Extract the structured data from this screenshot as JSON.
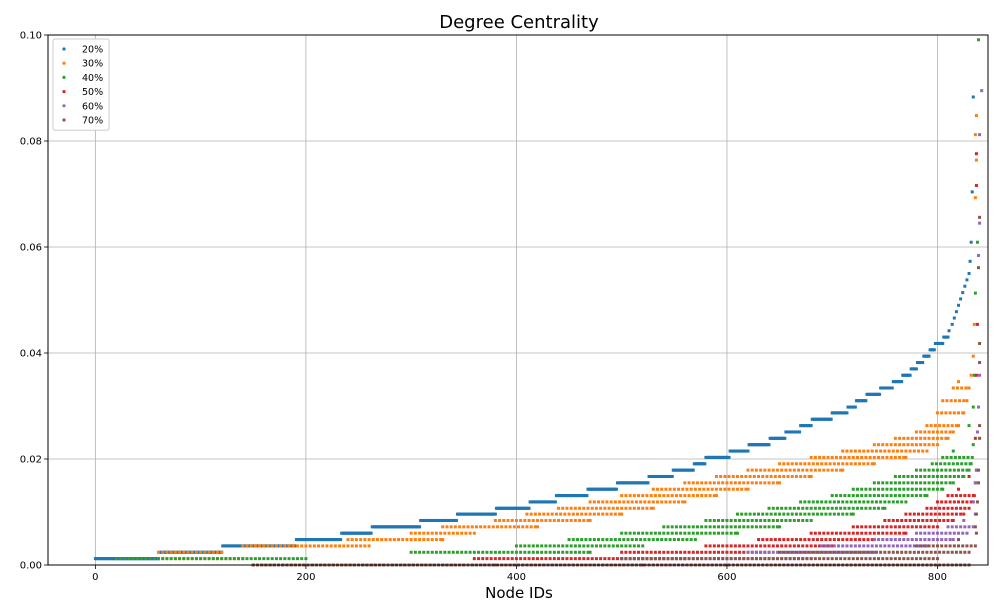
{
  "chart_data": {
    "type": "scatter",
    "title": "Degree Centrality",
    "xlabel": "Node IDs",
    "ylabel": "",
    "xlim": [
      -45,
      848
    ],
    "ylim": [
      0,
      0.1
    ],
    "xticks": [
      0,
      200,
      400,
      600,
      800
    ],
    "xtick_labels": [
      "0",
      "200",
      "400",
      "600",
      "800"
    ],
    "yticks": [
      0,
      0.02,
      0.04,
      0.06,
      0.08,
      0.1
    ],
    "ytick_labels": [
      "0.00",
      "0.02",
      "0.04",
      "0.06",
      "0.08",
      "0.10"
    ],
    "grid": true,
    "legend_position": "top-left",
    "n_nodes": 838,
    "series": [
      {
        "name": "20%",
        "color": "#1f77b4",
        "points": [
          [
            0,
            0.0012
          ],
          [
            60,
            0.0012
          ],
          [
            61,
            0.0024
          ],
          [
            120,
            0.0024
          ],
          [
            121,
            0.0036
          ],
          [
            190,
            0.0036
          ],
          [
            191,
            0.0048
          ],
          [
            233,
            0.0048
          ],
          [
            234,
            0.006
          ],
          [
            262,
            0.006
          ],
          [
            263,
            0.0072
          ],
          [
            308,
            0.0072
          ],
          [
            309,
            0.0084
          ],
          [
            343,
            0.0084
          ],
          [
            344,
            0.0096
          ],
          [
            380,
            0.0096
          ],
          [
            381,
            0.0107
          ],
          [
            412,
            0.0107
          ],
          [
            413,
            0.0119
          ],
          [
            437,
            0.0119
          ],
          [
            438,
            0.0131
          ],
          [
            467,
            0.0131
          ],
          [
            468,
            0.0143
          ],
          [
            495,
            0.0143
          ],
          [
            496,
            0.0155
          ],
          [
            525,
            0.0155
          ],
          [
            526,
            0.0167
          ],
          [
            548,
            0.0167
          ],
          [
            549,
            0.0179
          ],
          [
            568,
            0.0179
          ],
          [
            569,
            0.0191
          ],
          [
            579,
            0.0191
          ],
          [
            580,
            0.0203
          ],
          [
            602,
            0.0203
          ],
          [
            603,
            0.0215
          ],
          [
            620,
            0.0215
          ],
          [
            621,
            0.0227
          ],
          [
            640,
            0.0227
          ],
          [
            641,
            0.0239
          ],
          [
            655,
            0.0239
          ],
          [
            656,
            0.0251
          ],
          [
            669,
            0.0251
          ],
          [
            670,
            0.0263
          ],
          [
            680,
            0.0263
          ],
          [
            681,
            0.0275
          ],
          [
            699,
            0.0275
          ],
          [
            700,
            0.0287
          ],
          [
            714,
            0.0287
          ],
          [
            715,
            0.0298
          ],
          [
            722,
            0.0298
          ],
          [
            723,
            0.031
          ],
          [
            732,
            0.031
          ],
          [
            733,
            0.0322
          ],
          [
            745,
            0.0322
          ],
          [
            746,
            0.0334
          ],
          [
            757,
            0.0334
          ],
          [
            758,
            0.0346
          ],
          [
            766,
            0.0346
          ],
          [
            767,
            0.0358
          ],
          [
            774,
            0.0358
          ],
          [
            775,
            0.037
          ],
          [
            780,
            0.037
          ],
          [
            781,
            0.0382
          ],
          [
            786,
            0.0382
          ],
          [
            787,
            0.0394
          ],
          [
            792,
            0.0394
          ],
          [
            793,
            0.0406
          ],
          [
            797,
            0.0406
          ],
          [
            798,
            0.0418
          ],
          [
            805,
            0.0418
          ],
          [
            806,
            0.043
          ],
          [
            810,
            0.043
          ],
          [
            811,
            0.0442
          ],
          [
            814,
            0.0454
          ],
          [
            816,
            0.0466
          ],
          [
            818,
            0.0478
          ],
          [
            820,
            0.049
          ],
          [
            822,
            0.0502
          ],
          [
            824,
            0.0514
          ],
          [
            826,
            0.0526
          ],
          [
            828,
            0.0538
          ],
          [
            830,
            0.055
          ],
          [
            831,
            0.0573
          ],
          [
            832,
            0.0609
          ],
          [
            833,
            0.0704
          ],
          [
            834,
            0.0883
          ]
        ]
      },
      {
        "name": "30%",
        "color": "#ff7f0e",
        "points": [
          [
            60,
            0.0024
          ],
          [
            120,
            0.0024
          ],
          [
            60,
            0.0012
          ],
          [
            140,
            0.0012
          ],
          [
            140,
            0.0036
          ],
          [
            260,
            0.0036
          ],
          [
            240,
            0.0048
          ],
          [
            330,
            0.0048
          ],
          [
            300,
            0.006
          ],
          [
            360,
            0.006
          ],
          [
            330,
            0.0072
          ],
          [
            420,
            0.0072
          ],
          [
            380,
            0.0084
          ],
          [
            470,
            0.0084
          ],
          [
            410,
            0.0096
          ],
          [
            500,
            0.0096
          ],
          [
            440,
            0.0107
          ],
          [
            530,
            0.0107
          ],
          [
            470,
            0.0119
          ],
          [
            560,
            0.0119
          ],
          [
            500,
            0.0131
          ],
          [
            590,
            0.0131
          ],
          [
            530,
            0.0143
          ],
          [
            620,
            0.0143
          ],
          [
            560,
            0.0155
          ],
          [
            650,
            0.0155
          ],
          [
            590,
            0.0167
          ],
          [
            680,
            0.0167
          ],
          [
            620,
            0.0179
          ],
          [
            710,
            0.0179
          ],
          [
            650,
            0.0191
          ],
          [
            740,
            0.0191
          ],
          [
            680,
            0.0203
          ],
          [
            770,
            0.0203
          ],
          [
            710,
            0.0215
          ],
          [
            790,
            0.0215
          ],
          [
            740,
            0.0227
          ],
          [
            800,
            0.0227
          ],
          [
            760,
            0.0239
          ],
          [
            810,
            0.0239
          ],
          [
            780,
            0.0251
          ],
          [
            815,
            0.0251
          ],
          [
            790,
            0.0263
          ],
          [
            820,
            0.0263
          ],
          [
            800,
            0.0287
          ],
          [
            825,
            0.0287
          ],
          [
            805,
            0.031
          ],
          [
            828,
            0.031
          ],
          [
            815,
            0.0334
          ],
          [
            830,
            0.0334
          ],
          [
            820,
            0.0346
          ],
          [
            832,
            0.0358
          ],
          [
            834,
            0.0394
          ],
          [
            835,
            0.0454
          ],
          [
            836,
            0.0693
          ],
          [
            837,
            0.0764
          ],
          [
            836,
            0.0812
          ],
          [
            837,
            0.0848
          ]
        ]
      },
      {
        "name": "40%",
        "color": "#2ca02c",
        "points": [
          [
            20,
            0.0012
          ],
          [
            200,
            0.0012
          ],
          [
            150,
            0.0
          ],
          [
            380,
            0.0
          ],
          [
            300,
            0.0024
          ],
          [
            470,
            0.0024
          ],
          [
            400,
            0.0036
          ],
          [
            520,
            0.0036
          ],
          [
            450,
            0.0048
          ],
          [
            570,
            0.0048
          ],
          [
            500,
            0.006
          ],
          [
            610,
            0.006
          ],
          [
            540,
            0.0072
          ],
          [
            650,
            0.0072
          ],
          [
            580,
            0.0084
          ],
          [
            680,
            0.0084
          ],
          [
            610,
            0.0096
          ],
          [
            720,
            0.0096
          ],
          [
            640,
            0.0107
          ],
          [
            750,
            0.0107
          ],
          [
            670,
            0.0119
          ],
          [
            770,
            0.0119
          ],
          [
            700,
            0.0131
          ],
          [
            790,
            0.0131
          ],
          [
            720,
            0.0143
          ],
          [
            805,
            0.0143
          ],
          [
            740,
            0.0155
          ],
          [
            815,
            0.0155
          ],
          [
            760,
            0.0167
          ],
          [
            825,
            0.0167
          ],
          [
            780,
            0.0179
          ],
          [
            830,
            0.0179
          ],
          [
            795,
            0.0191
          ],
          [
            832,
            0.0191
          ],
          [
            805,
            0.0203
          ],
          [
            833,
            0.0203
          ],
          [
            815,
            0.0215
          ],
          [
            834,
            0.0227
          ],
          [
            830,
            0.0263
          ],
          [
            834,
            0.0298
          ],
          [
            835,
            0.0358
          ],
          [
            836,
            0.0513
          ],
          [
            838,
            0.0609
          ],
          [
            839,
            0.0991
          ]
        ]
      },
      {
        "name": "50%",
        "color": "#d62728",
        "points": [
          [
            150,
            0.0
          ],
          [
            520,
            0.0
          ],
          [
            360,
            0.0012
          ],
          [
            560,
            0.0012
          ],
          [
            500,
            0.0024
          ],
          [
            640,
            0.0024
          ],
          [
            580,
            0.0036
          ],
          [
            700,
            0.0036
          ],
          [
            630,
            0.0048
          ],
          [
            740,
            0.0048
          ],
          [
            680,
            0.006
          ],
          [
            770,
            0.006
          ],
          [
            720,
            0.0072
          ],
          [
            800,
            0.0072
          ],
          [
            750,
            0.0084
          ],
          [
            815,
            0.0084
          ],
          [
            770,
            0.0096
          ],
          [
            825,
            0.0096
          ],
          [
            790,
            0.0107
          ],
          [
            830,
            0.0107
          ],
          [
            800,
            0.0119
          ],
          [
            834,
            0.0119
          ],
          [
            810,
            0.0131
          ],
          [
            835,
            0.0131
          ],
          [
            820,
            0.0143
          ],
          [
            836,
            0.0155
          ],
          [
            830,
            0.0167
          ],
          [
            837,
            0.0179
          ],
          [
            836,
            0.0239
          ],
          [
            837,
            0.0358
          ],
          [
            838,
            0.0454
          ],
          [
            837,
            0.0716
          ],
          [
            837,
            0.0776
          ]
        ]
      },
      {
        "name": "60%",
        "color": "#9467bd",
        "points": [
          [
            250,
            0.0
          ],
          [
            600,
            0.0
          ],
          [
            500,
            0.0012
          ],
          [
            680,
            0.0012
          ],
          [
            620,
            0.0024
          ],
          [
            740,
            0.0024
          ],
          [
            690,
            0.0036
          ],
          [
            790,
            0.0036
          ],
          [
            740,
            0.0048
          ],
          [
            815,
            0.0048
          ],
          [
            780,
            0.006
          ],
          [
            828,
            0.006
          ],
          [
            810,
            0.0072
          ],
          [
            834,
            0.0072
          ],
          [
            825,
            0.0084
          ],
          [
            836,
            0.0096
          ],
          [
            834,
            0.0119
          ],
          [
            836,
            0.0155
          ],
          [
            837,
            0.0179
          ],
          [
            838,
            0.0251
          ],
          [
            839,
            0.0298
          ],
          [
            840,
            0.0358
          ],
          [
            839,
            0.0584
          ],
          [
            840,
            0.0645
          ],
          [
            840,
            0.0812
          ],
          [
            842,
            0.0895
          ]
        ]
      },
      {
        "name": "70%",
        "color": "#8c564b",
        "points": [
          [
            150,
            0.0
          ],
          [
            830,
            0.0
          ],
          [
            500,
            0.0012
          ],
          [
            800,
            0.0012
          ],
          [
            650,
            0.0024
          ],
          [
            830,
            0.0024
          ],
          [
            780,
            0.0036
          ],
          [
            836,
            0.0036
          ],
          [
            820,
            0.0048
          ],
          [
            837,
            0.006
          ],
          [
            836,
            0.0072
          ],
          [
            837,
            0.0096
          ],
          [
            838,
            0.0119
          ],
          [
            839,
            0.0155
          ],
          [
            839,
            0.0179
          ],
          [
            840,
            0.0239
          ],
          [
            840,
            0.0263
          ],
          [
            840,
            0.0382
          ],
          [
            840,
            0.0418
          ],
          [
            839,
            0.0561
          ],
          [
            840,
            0.0656
          ]
        ]
      }
    ]
  }
}
